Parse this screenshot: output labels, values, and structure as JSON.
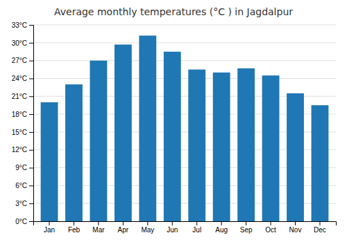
{
  "chart_data": {
    "type": "bar",
    "title": "Average monthly temperatures (°C ) in Jagdalpur",
    "categories": [
      "Jan",
      "Feb",
      "Mar",
      "Apr",
      "May",
      "Jun",
      "Jul",
      "Aug",
      "Sep",
      "Oct",
      "Nov",
      "Dec"
    ],
    "values": [
      20.0,
      23.0,
      27.0,
      29.7,
      31.2,
      28.5,
      25.5,
      25.0,
      25.7,
      24.5,
      21.5,
      19.5
    ],
    "ylim": [
      0,
      33
    ],
    "yticks": [
      {
        "value": 0,
        "label": "0°C"
      },
      {
        "value": 3,
        "label": "3°C"
      },
      {
        "value": 6,
        "label": "6°C"
      },
      {
        "value": 9,
        "label": "9°C"
      },
      {
        "value": 12,
        "label": "12°C"
      },
      {
        "value": 15,
        "label": "15°C"
      },
      {
        "value": 18,
        "label": "18°C"
      },
      {
        "value": 21,
        "label": "21°C"
      },
      {
        "value": 24,
        "label": "24°C"
      },
      {
        "value": 27,
        "label": "27°C"
      },
      {
        "value": 30,
        "label": "30°C"
      },
      {
        "value": 33,
        "label": "33°C"
      }
    ],
    "grid": true
  }
}
